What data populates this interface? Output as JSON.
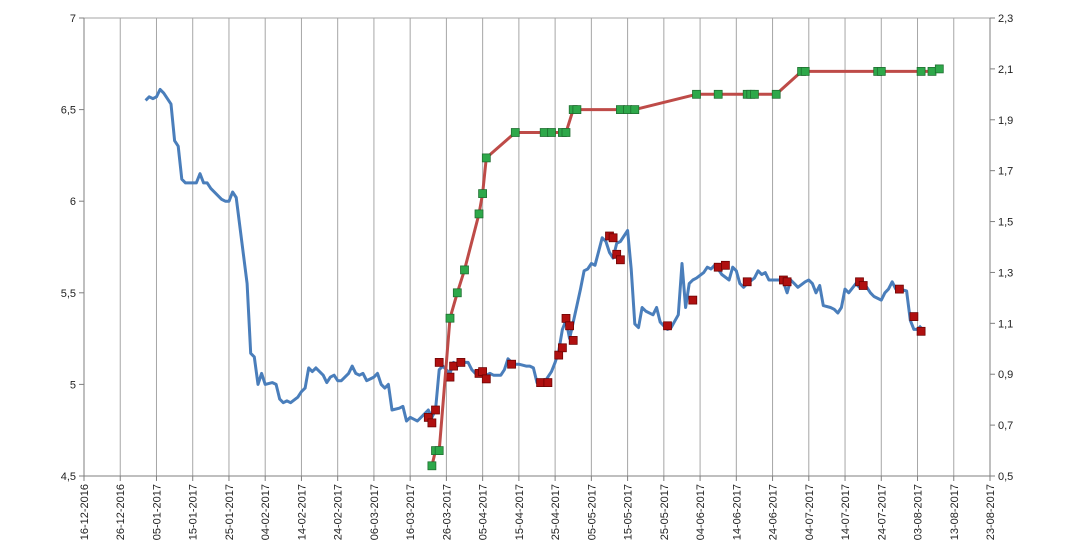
{
  "chart_data": {
    "type": "line",
    "title": "",
    "xlabel": "",
    "ylabel": "",
    "y2label": "",
    "x_tick_labels": [
      "16-12-2016",
      "26-12-2016",
      "05-01-2017",
      "15-01-2017",
      "25-01-2017",
      "04-02-2017",
      "14-02-2017",
      "24-02-2017",
      "06-03-2017",
      "16-03-2017",
      "26-03-2017",
      "05-04-2017",
      "15-04-2017",
      "25-04-2017",
      "05-05-2017",
      "15-05-2017",
      "25-05-2017",
      "04-06-2017",
      "14-06-2017",
      "24-06-2017",
      "04-07-2017",
      "14-07-2017",
      "24-07-2017",
      "03-08-2017",
      "13-08-2017",
      "23-08-2017"
    ],
    "xlim": [
      "16-12-2016",
      "23-08-2017"
    ],
    "y_left": {
      "ticks": [
        "4,5",
        "5",
        "5,5",
        "6",
        "6,5",
        "7"
      ],
      "lim": [
        4.5,
        7
      ]
    },
    "y_right": {
      "ticks": [
        "0,5",
        "0,7",
        "0,9",
        "1,1",
        "1,3",
        "1,5",
        "1,7",
        "1,9",
        "2,1",
        "2,3"
      ],
      "lim": [
        0.5,
        2.3
      ]
    },
    "grid": "vertical",
    "colors": {
      "blue": "#4a7ebb",
      "red": "#be4b48",
      "green_marker": "#2ea84a",
      "darkred_marker": "#b01010"
    },
    "series": [
      {
        "axis": "left",
        "color": "#4a7ebb",
        "markers": false,
        "points": [
          [
            "2017-01-02",
            6.55
          ],
          [
            "2017-01-03",
            6.57
          ],
          [
            "2017-01-04",
            6.56
          ],
          [
            "2017-01-05",
            6.57
          ],
          [
            "2017-01-06",
            6.61
          ],
          [
            "2017-01-07",
            6.59
          ],
          [
            "2017-01-09",
            6.53
          ],
          [
            "2017-01-10",
            6.33
          ],
          [
            "2017-01-11",
            6.3
          ],
          [
            "2017-01-12",
            6.12
          ],
          [
            "2017-01-13",
            6.1
          ],
          [
            "2017-01-16",
            6.1
          ],
          [
            "2017-01-17",
            6.15
          ],
          [
            "2017-01-18",
            6.1
          ],
          [
            "2017-01-19",
            6.1
          ],
          [
            "2017-01-20",
            6.07
          ],
          [
            "2017-01-23",
            6.01
          ],
          [
            "2017-01-24",
            6.0
          ],
          [
            "2017-01-25",
            6.0
          ],
          [
            "2017-01-26",
            6.05
          ],
          [
            "2017-01-27",
            6.02
          ],
          [
            "2017-01-30",
            5.55
          ],
          [
            "2017-01-31",
            5.17
          ],
          [
            "2017-02-01",
            5.15
          ],
          [
            "2017-02-02",
            5.0
          ],
          [
            "2017-02-03",
            5.06
          ],
          [
            "2017-02-04",
            5.0
          ],
          [
            "2017-02-06",
            5.01
          ],
          [
            "2017-02-07",
            5.0
          ],
          [
            "2017-02-08",
            4.92
          ],
          [
            "2017-02-09",
            4.9
          ],
          [
            "2017-02-10",
            4.91
          ],
          [
            "2017-02-11",
            4.9
          ],
          [
            "2017-02-13",
            4.93
          ],
          [
            "2017-02-14",
            4.96
          ],
          [
            "2017-02-15",
            4.98
          ],
          [
            "2017-02-16",
            5.09
          ],
          [
            "2017-02-17",
            5.07
          ],
          [
            "2017-02-18",
            5.09
          ],
          [
            "2017-02-20",
            5.05
          ],
          [
            "2017-02-21",
            5.01
          ],
          [
            "2017-02-22",
            5.04
          ],
          [
            "2017-02-23",
            5.05
          ],
          [
            "2017-02-24",
            5.02
          ],
          [
            "2017-02-25",
            5.02
          ],
          [
            "2017-02-27",
            5.06
          ],
          [
            "2017-02-28",
            5.1
          ],
          [
            "2017-03-01",
            5.06
          ],
          [
            "2017-03-02",
            5.05
          ],
          [
            "2017-03-03",
            5.06
          ],
          [
            "2017-03-04",
            5.02
          ],
          [
            "2017-03-06",
            5.04
          ],
          [
            "2017-03-07",
            5.06
          ],
          [
            "2017-03-08",
            5.0
          ],
          [
            "2017-03-09",
            4.98
          ],
          [
            "2017-03-10",
            5.0
          ],
          [
            "2017-03-11",
            4.86
          ],
          [
            "2017-03-13",
            4.87
          ],
          [
            "2017-03-14",
            4.88
          ],
          [
            "2017-03-15",
            4.8
          ],
          [
            "2017-03-16",
            4.82
          ],
          [
            "2017-03-17",
            4.81
          ],
          [
            "2017-03-18",
            4.8
          ],
          [
            "2017-03-20",
            4.84
          ],
          [
            "2017-03-21",
            4.86
          ],
          [
            "2017-03-22",
            4.82
          ],
          [
            "2017-03-23",
            4.86
          ],
          [
            "2017-03-24",
            5.08
          ],
          [
            "2017-03-25",
            5.1
          ],
          [
            "2017-03-27",
            5.06
          ],
          [
            "2017-03-28",
            5.12
          ],
          [
            "2017-03-29",
            5.1
          ],
          [
            "2017-03-30",
            5.12
          ],
          [
            "2017-04-01",
            5.12
          ],
          [
            "2017-04-02",
            5.08
          ],
          [
            "2017-04-03",
            5.06
          ],
          [
            "2017-04-04",
            5.05
          ],
          [
            "2017-04-05",
            5.06
          ],
          [
            "2017-04-06",
            5.05
          ],
          [
            "2017-04-07",
            5.06
          ],
          [
            "2017-04-08",
            5.05
          ],
          [
            "2017-04-10",
            5.05
          ],
          [
            "2017-04-11",
            5.08
          ],
          [
            "2017-04-12",
            5.14
          ],
          [
            "2017-04-13",
            5.12
          ],
          [
            "2017-04-14",
            5.11
          ],
          [
            "2017-04-15",
            5.11
          ],
          [
            "2017-04-17",
            5.1
          ],
          [
            "2017-04-18",
            5.1
          ],
          [
            "2017-04-19",
            5.09
          ],
          [
            "2017-04-20",
            5.01
          ],
          [
            "2017-04-21",
            5.0
          ],
          [
            "2017-04-22",
            5.01
          ],
          [
            "2017-04-24",
            5.07
          ],
          [
            "2017-04-25",
            5.12
          ],
          [
            "2017-04-26",
            5.18
          ],
          [
            "2017-04-27",
            5.3
          ],
          [
            "2017-04-28",
            5.35
          ],
          [
            "2017-04-29",
            5.25
          ],
          [
            "2017-05-01",
            5.43
          ],
          [
            "2017-05-02",
            5.52
          ],
          [
            "2017-05-03",
            5.62
          ],
          [
            "2017-05-04",
            5.63
          ],
          [
            "2017-05-05",
            5.66
          ],
          [
            "2017-05-06",
            5.65
          ],
          [
            "2017-05-08",
            5.8
          ],
          [
            "2017-05-09",
            5.78
          ],
          [
            "2017-05-10",
            5.72
          ],
          [
            "2017-05-11",
            5.69
          ],
          [
            "2017-05-12",
            5.77
          ],
          [
            "2017-05-13",
            5.78
          ],
          [
            "2017-05-15",
            5.84
          ],
          [
            "2017-05-16",
            5.63
          ],
          [
            "2017-05-17",
            5.33
          ],
          [
            "2017-05-18",
            5.31
          ],
          [
            "2017-05-19",
            5.42
          ],
          [
            "2017-05-20",
            5.4
          ],
          [
            "2017-05-22",
            5.38
          ],
          [
            "2017-05-23",
            5.42
          ],
          [
            "2017-05-24",
            5.34
          ],
          [
            "2017-05-25",
            5.32
          ],
          [
            "2017-05-26",
            5.3
          ],
          [
            "2017-05-27",
            5.31
          ],
          [
            "2017-05-29",
            5.38
          ],
          [
            "2017-05-30",
            5.66
          ],
          [
            "2017-05-31",
            5.42
          ],
          [
            "2017-06-01",
            5.55
          ],
          [
            "2017-06-02",
            5.57
          ],
          [
            "2017-06-03",
            5.58
          ],
          [
            "2017-06-05",
            5.61
          ],
          [
            "2017-06-06",
            5.64
          ],
          [
            "2017-06-07",
            5.63
          ],
          [
            "2017-06-08",
            5.65
          ],
          [
            "2017-06-09",
            5.63
          ],
          [
            "2017-06-10",
            5.6
          ],
          [
            "2017-06-12",
            5.57
          ],
          [
            "2017-06-13",
            5.64
          ],
          [
            "2017-06-14",
            5.62
          ],
          [
            "2017-06-15",
            5.55
          ],
          [
            "2017-06-16",
            5.53
          ],
          [
            "2017-06-17",
            5.55
          ],
          [
            "2017-06-19",
            5.58
          ],
          [
            "2017-06-20",
            5.62
          ],
          [
            "2017-06-21",
            5.6
          ],
          [
            "2017-06-22",
            5.61
          ],
          [
            "2017-06-23",
            5.57
          ],
          [
            "2017-06-24",
            5.57
          ],
          [
            "2017-06-26",
            5.57
          ],
          [
            "2017-06-27",
            5.56
          ],
          [
            "2017-06-28",
            5.5
          ],
          [
            "2017-06-29",
            5.57
          ],
          [
            "2017-06-30",
            5.55
          ],
          [
            "2017-07-01",
            5.53
          ],
          [
            "2017-07-03",
            5.56
          ],
          [
            "2017-07-04",
            5.57
          ],
          [
            "2017-07-05",
            5.55
          ],
          [
            "2017-07-06",
            5.5
          ],
          [
            "2017-07-07",
            5.54
          ],
          [
            "2017-07-08",
            5.43
          ],
          [
            "2017-07-10",
            5.42
          ],
          [
            "2017-07-11",
            5.41
          ],
          [
            "2017-07-12",
            5.39
          ],
          [
            "2017-07-13",
            5.42
          ],
          [
            "2017-07-14",
            5.52
          ],
          [
            "2017-07-15",
            5.5
          ],
          [
            "2017-07-17",
            5.55
          ],
          [
            "2017-07-18",
            5.53
          ],
          [
            "2017-07-19",
            5.55
          ],
          [
            "2017-07-20",
            5.53
          ],
          [
            "2017-07-21",
            5.5
          ],
          [
            "2017-07-22",
            5.48
          ],
          [
            "2017-07-24",
            5.46
          ],
          [
            "2017-07-25",
            5.5
          ],
          [
            "2017-07-26",
            5.52
          ],
          [
            "2017-07-27",
            5.56
          ],
          [
            "2017-07-28",
            5.52
          ],
          [
            "2017-07-29",
            5.52
          ],
          [
            "2017-07-31",
            5.51
          ],
          [
            "2017-08-01",
            5.35
          ],
          [
            "2017-08-02",
            5.3
          ],
          [
            "2017-08-03",
            5.3
          ],
          [
            "2017-08-04",
            5.32
          ]
        ]
      },
      {
        "axis": "left",
        "color": "none",
        "markers": true,
        "marker_color": "#b01010",
        "points": [
          [
            "2017-03-21",
            4.82
          ],
          [
            "2017-03-22",
            4.79
          ],
          [
            "2017-03-23",
            4.86
          ],
          [
            "2017-03-24",
            5.12
          ],
          [
            "2017-03-27",
            5.04
          ],
          [
            "2017-03-28",
            5.1
          ],
          [
            "2017-03-30",
            5.12
          ],
          [
            "2017-04-04",
            5.06
          ],
          [
            "2017-04-05",
            5.07
          ],
          [
            "2017-04-06",
            5.03
          ],
          [
            "2017-04-13",
            5.11
          ],
          [
            "2017-04-21",
            5.01
          ],
          [
            "2017-04-23",
            5.01
          ],
          [
            "2017-04-26",
            5.16
          ],
          [
            "2017-04-27",
            5.2
          ],
          [
            "2017-04-28",
            5.36
          ],
          [
            "2017-04-29",
            5.32
          ],
          [
            "2017-04-30",
            5.24
          ],
          [
            "2017-05-10",
            5.81
          ],
          [
            "2017-05-11",
            5.8
          ],
          [
            "2017-05-12",
            5.71
          ],
          [
            "2017-05-13",
            5.68
          ],
          [
            "2017-05-26",
            5.32
          ],
          [
            "2017-06-02",
            5.46
          ],
          [
            "2017-06-09",
            5.64
          ],
          [
            "2017-06-11",
            5.65
          ],
          [
            "2017-06-17",
            5.56
          ],
          [
            "2017-06-27",
            5.57
          ],
          [
            "2017-06-28",
            5.56
          ],
          [
            "2017-07-18",
            5.56
          ],
          [
            "2017-07-19",
            5.54
          ],
          [
            "2017-07-29",
            5.52
          ],
          [
            "2017-08-02",
            5.37
          ],
          [
            "2017-08-04",
            5.29
          ]
        ]
      },
      {
        "axis": "right",
        "color": "#be4b48",
        "markers": true,
        "marker_color": "#2ea84a",
        "points": [
          [
            "2017-03-22",
            0.54
          ],
          [
            "2017-03-23",
            0.6
          ],
          [
            "2017-03-24",
            0.6
          ],
          [
            "2017-03-27",
            1.12
          ],
          [
            "2017-03-29",
            1.22
          ],
          [
            "2017-03-31",
            1.31
          ],
          [
            "2017-04-04",
            1.53
          ],
          [
            "2017-04-05",
            1.61
          ],
          [
            "2017-04-06",
            1.75
          ],
          [
            "2017-04-14",
            1.85
          ],
          [
            "2017-04-22",
            1.85
          ],
          [
            "2017-04-24",
            1.85
          ],
          [
            "2017-04-27",
            1.85
          ],
          [
            "2017-04-28",
            1.85
          ],
          [
            "2017-04-30",
            1.94
          ],
          [
            "2017-05-01",
            1.94
          ],
          [
            "2017-05-13",
            1.94
          ],
          [
            "2017-05-15",
            1.94
          ],
          [
            "2017-05-17",
            1.94
          ],
          [
            "2017-06-03",
            2.0
          ],
          [
            "2017-06-09",
            2.0
          ],
          [
            "2017-06-17",
            2.0
          ],
          [
            "2017-06-18",
            2.0
          ],
          [
            "2017-06-19",
            2.0
          ],
          [
            "2017-06-25",
            2.0
          ],
          [
            "2017-07-02",
            2.09
          ],
          [
            "2017-07-03",
            2.09
          ],
          [
            "2017-07-23",
            2.09
          ],
          [
            "2017-07-24",
            2.09
          ],
          [
            "2017-08-04",
            2.09
          ],
          [
            "2017-08-07",
            2.09
          ],
          [
            "2017-08-09",
            2.1
          ]
        ]
      }
    ]
  }
}
